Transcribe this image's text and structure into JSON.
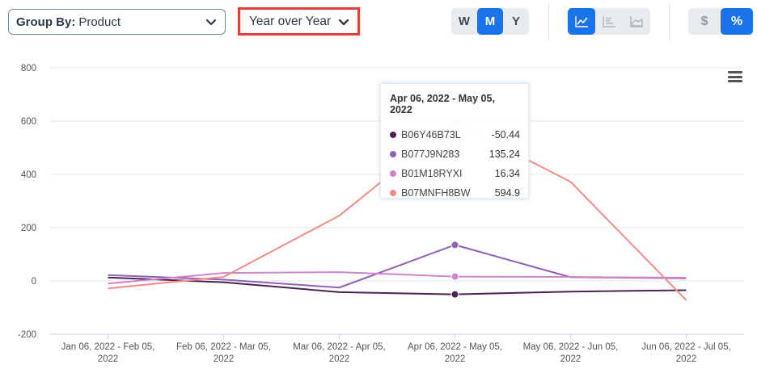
{
  "controls": {
    "group_by_label": "Group By:",
    "group_by_value": "Product",
    "period_value": "Year over Year",
    "time_buttons": [
      "W",
      "M",
      "Y"
    ],
    "time_active": "M",
    "unit_buttons": [
      "$",
      "%"
    ],
    "unit_active": "%"
  },
  "colors": {
    "B06Y46B73L": "#4b2350",
    "B077J9N283": "#8e63b5",
    "B01M18RYXI": "#d283cf",
    "B07MNFH8BW": "#f88a86",
    "accent": "#1a73e8",
    "highlight_border": "#e0413b"
  },
  "tooltip": {
    "title": "Apr 06, 2022 - May 05, 2022",
    "rows": [
      {
        "name": "B06Y46B73L",
        "value": "-50.44"
      },
      {
        "name": "B077J9N283",
        "value": "135.24"
      },
      {
        "name": "B01M18RYXI",
        "value": "16.34"
      },
      {
        "name": "B07MNFH8BW",
        "value": "594.9"
      }
    ]
  },
  "chart_data": {
    "type": "line",
    "categories": [
      [
        "Jan 06, 2022 - Feb 05,",
        "2022"
      ],
      [
        "Feb 06, 2022 - Mar 05,",
        "2022"
      ],
      [
        "Mar 06, 2022 - Apr 05,",
        "2022"
      ],
      [
        "Apr 06, 2022 - May 05,",
        "2022"
      ],
      [
        "May 06, 2022 - Jun 05,",
        "2022"
      ],
      [
        "Jun 06, 2022 - Jul 05,",
        "2022"
      ]
    ],
    "ylim": [
      -200,
      800
    ],
    "yticks": [
      -200,
      0,
      200,
      400,
      600,
      800
    ],
    "grid": true,
    "series": [
      {
        "name": "B06Y46B73L",
        "values": [
          13,
          -5,
          -42,
          -50.44,
          -40,
          -35
        ]
      },
      {
        "name": "B077J9N283",
        "values": [
          22,
          5,
          -25,
          135.24,
          14,
          10
        ]
      },
      {
        "name": "B01M18RYXI",
        "values": [
          -10,
          30,
          33,
          16.34,
          15,
          12
        ]
      },
      {
        "name": "B07MNFH8BW",
        "values": [
          -28,
          15,
          245,
          594.9,
          372,
          -72
        ]
      }
    ],
    "highlight_index": 3
  }
}
